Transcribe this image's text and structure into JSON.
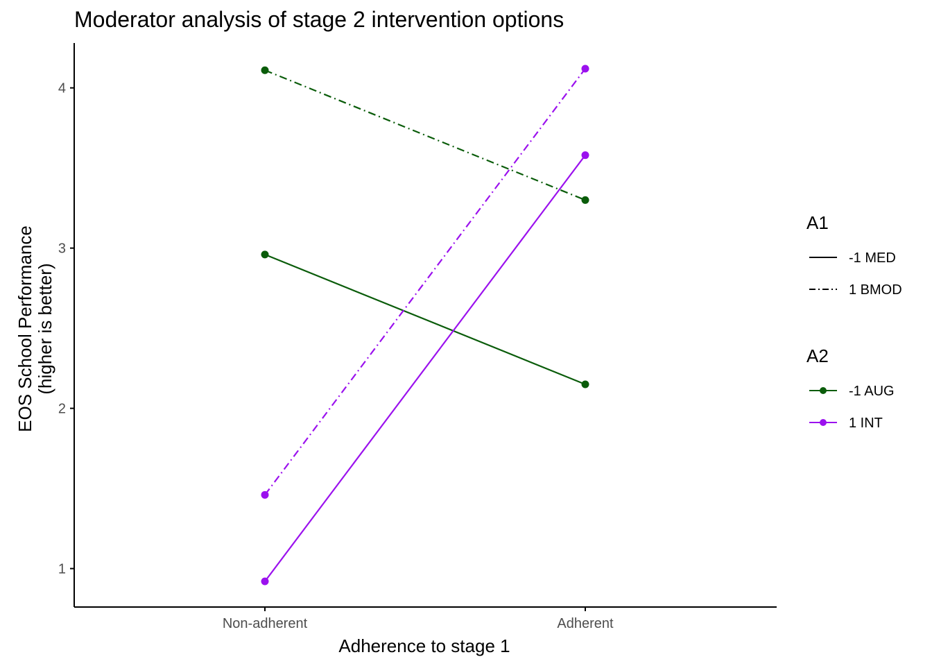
{
  "chart_data": {
    "type": "line",
    "title": "Moderator analysis of stage 2 intervention options",
    "xlabel": "Adherence to stage 1",
    "ylabel_lines": [
      "EOS School Performance",
      "(higher is better)"
    ],
    "categories": [
      "Non-adherent",
      "Adherent"
    ],
    "y_ticks": [
      1,
      2,
      3,
      4
    ],
    "ylim": [
      0.76,
      4.28
    ],
    "grid": false,
    "colors": {
      "aug": "#0a5c0a",
      "int": "#9b11ee",
      "axis": "#000000",
      "tick_text": "#4d4d4d"
    },
    "series": [
      {
        "a1": "-1 MED",
        "a2": "-1 AUG",
        "values": [
          2.96,
          2.15
        ],
        "linetype": "solid",
        "color": "#0a5c0a"
      },
      {
        "a1": "1 BMOD",
        "a2": "-1 AUG",
        "values": [
          4.11,
          3.3
        ],
        "linetype": "dashdot",
        "color": "#0a5c0a"
      },
      {
        "a1": "-1 MED",
        "a2": "1 INT",
        "values": [
          0.92,
          3.58
        ],
        "linetype": "solid",
        "color": "#9b11ee"
      },
      {
        "a1": "1 BMOD",
        "a2": "1 INT",
        "values": [
          1.46,
          4.12
        ],
        "linetype": "dashdot",
        "color": "#9b11ee"
      }
    ],
    "legend": {
      "placement": "right",
      "a1": {
        "title": "A1",
        "items": [
          {
            "label": "-1 MED",
            "linetype": "solid"
          },
          {
            "label": "1 BMOD",
            "linetype": "dashdot"
          }
        ]
      },
      "a2": {
        "title": "A2",
        "items": [
          {
            "label": "-1 AUG",
            "color": "#0a5c0a"
          },
          {
            "label": "1 INT",
            "color": "#9b11ee"
          }
        ]
      }
    }
  }
}
